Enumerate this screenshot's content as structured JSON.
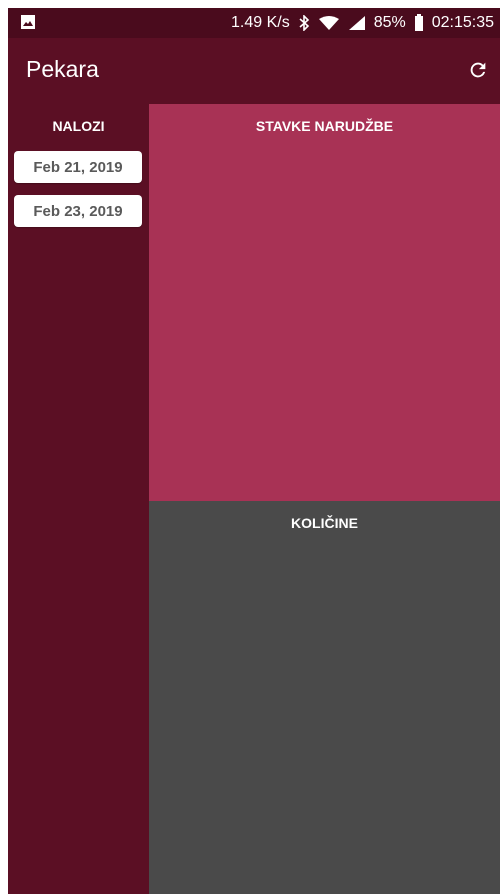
{
  "status_bar": {
    "network_speed": "1.49 K/s",
    "battery_percent": "85%",
    "time": "02:15:35",
    "icons": [
      "image-icon",
      "bluetooth-icon",
      "wifi-icon",
      "signal-icon",
      "battery-icon"
    ]
  },
  "app_bar": {
    "title": "Pekara",
    "refresh_icon": "refresh-icon"
  },
  "sidebar": {
    "title": "NALOZI",
    "items": [
      {
        "label": "Feb 21, 2019"
      },
      {
        "label": "Feb 23, 2019"
      }
    ]
  },
  "stavke": {
    "title": "STAVKE NARUDŽBE"
  },
  "kolicine": {
    "title": "KOLIČINE"
  },
  "colors": {
    "status_bar": "#4a0b1d",
    "primary_dark": "#5b0f24",
    "stavke_bg": "#a83255",
    "kolicine_bg": "#4a4a4a",
    "date_button_bg": "#ffffff",
    "date_button_text": "#5a5a5a"
  }
}
